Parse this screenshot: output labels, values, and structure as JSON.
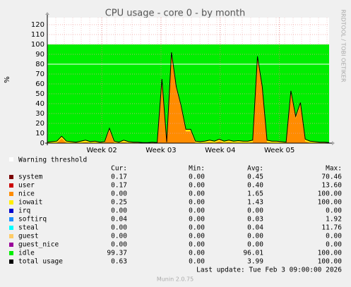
{
  "chart_data": {
    "type": "area",
    "title": "CPU usage - core 0 - by month",
    "y_label": "%",
    "side_note": "RRDTOOL / TOBI OETIKER",
    "xlim": [
      0,
      59
    ],
    "xticks": [
      {
        "value": 11.4,
        "label": "Week 02"
      },
      {
        "value": 23.8,
        "label": "Week 03"
      },
      {
        "value": 36.2,
        "label": "Week 04"
      },
      {
        "value": 48.6,
        "label": "Week 05"
      }
    ],
    "ylim": [
      0,
      120
    ],
    "yticks": [
      0,
      10,
      20,
      30,
      40,
      50,
      60,
      70,
      80,
      90,
      100,
      110,
      120
    ],
    "grid": true,
    "warning": {
      "name": "Warning threshold",
      "value": 80,
      "color": "#ffffff"
    },
    "stat_headers": [
      "Cur:",
      "Min:",
      "Avg:",
      "Max:"
    ],
    "series": [
      {
        "name": "system",
        "color": "#7a0000",
        "cur": "0.17",
        "min": "0.00",
        "avg": "0.45",
        "max": "70.46",
        "values": [
          0.2,
          0.2,
          0.2,
          0.2,
          0.2,
          0.2,
          0.2,
          0.2,
          0.2,
          0.2,
          0.2,
          0.2,
          0.2,
          0.2,
          0.2,
          0.2,
          0.2,
          0.2,
          0.2,
          0.2,
          0.2,
          0.2,
          0.2,
          0.2,
          0.2,
          0.2,
          0.2,
          0.2,
          0.2,
          0.2,
          0.2,
          0.2,
          0.2,
          0.2,
          0.2,
          0.2,
          0.2,
          0.2,
          0.2,
          0.2,
          0.2,
          0.2,
          0.2,
          0.2,
          0.2,
          0.2,
          0.2,
          0.2,
          0.2,
          0.2,
          0.2,
          0.2,
          0.2,
          0.2,
          0.2,
          0.2,
          0.2,
          0.2,
          0.2,
          0.2
        ]
      },
      {
        "name": "user",
        "color": "#cc0000",
        "cur": "0.17",
        "min": "0.00",
        "avg": "0.40",
        "max": "13.60",
        "values": [
          0.2,
          0.2,
          0.2,
          0.2,
          0.2,
          0.2,
          0.2,
          0.2,
          0.2,
          0.2,
          0.2,
          0.2,
          0.2,
          0.2,
          0.2,
          0.2,
          0.2,
          0.2,
          0.2,
          0.2,
          0.2,
          0.2,
          0.2,
          0.2,
          0.2,
          0.2,
          0.2,
          0.2,
          0.2,
          0.2,
          0.2,
          0.2,
          0.2,
          0.2,
          0.2,
          0.2,
          0.2,
          0.2,
          0.2,
          0.2,
          0.2,
          0.2,
          0.2,
          0.2,
          0.2,
          0.2,
          0.2,
          0.2,
          0.2,
          0.2,
          0.2,
          0.2,
          0.2,
          0.2,
          0.2,
          0.2,
          0.2,
          0.2,
          0.2,
          0.2
        ]
      },
      {
        "name": "nice",
        "color": "#ff8c00",
        "cur": "0.00",
        "min": "0.00",
        "avg": "1.65",
        "max": "100.00",
        "values": [
          0,
          0,
          0,
          4.6,
          0,
          0,
          0,
          0,
          0.6,
          0,
          0,
          0,
          0,
          12.6,
          0,
          0,
          0.6,
          0,
          0,
          0,
          0,
          0,
          0,
          0,
          62.6,
          0,
          89.6,
          54.6,
          35.6,
          11.6,
          11.6,
          0,
          0,
          0,
          0.6,
          0,
          1.6,
          0,
          0.6,
          0,
          0.1,
          0,
          0,
          0.6,
          85.6,
          54.6,
          0.6,
          0,
          0,
          0,
          0,
          50.6,
          24.6,
          38.6,
          1.6,
          0,
          0,
          0,
          0,
          0
        ]
      },
      {
        "name": "iowait",
        "color": "#ffee00",
        "cur": "0.25",
        "min": "0.00",
        "avg": "1.43",
        "max": "100.00",
        "values": [
          0.6,
          1.1,
          1.6,
          2,
          1.6,
          1.1,
          0.6,
          1.6,
          2,
          1.1,
          1.6,
          0.6,
          1.1,
          2,
          1.6,
          0.6,
          2,
          1.1,
          0.6,
          0.6,
          0.1,
          0.1,
          0.6,
          0.1,
          2,
          0.6,
          2,
          2,
          2,
          2,
          2,
          1.6,
          1.1,
          1.6,
          2,
          1.6,
          2,
          1.6,
          2,
          1.6,
          2,
          1.6,
          1.6,
          2,
          2,
          2,
          2,
          1.6,
          1.6,
          1.1,
          0.6,
          2,
          2,
          2,
          2,
          1.6,
          1.1,
          0.6,
          0.6,
          0.2
        ]
      },
      {
        "name": "irq",
        "color": "#0000cc",
        "cur": "0.00",
        "min": "0.00",
        "avg": "0.00",
        "max": "0.00"
      },
      {
        "name": "softirq",
        "color": "#1e90ff",
        "cur": "0.04",
        "min": "0.00",
        "avg": "0.03",
        "max": "1.92"
      },
      {
        "name": "steal",
        "color": "#00ffff",
        "cur": "0.00",
        "min": "0.00",
        "avg": "0.04",
        "max": "11.76"
      },
      {
        "name": "guest",
        "color": "#ffcc66",
        "cur": "0.00",
        "min": "0.00",
        "avg": "0.00",
        "max": "0.00"
      },
      {
        "name": "guest_nice",
        "color": "#990099",
        "cur": "0.00",
        "min": "0.00",
        "avg": "0.00",
        "max": "0.00"
      },
      {
        "name": "idle",
        "color": "#00ee00",
        "cur": "99.37",
        "min": "0.00",
        "avg": "96.01",
        "max": "100.00",
        "values": [
          99,
          98.5,
          98,
          93,
          98,
          98.5,
          99,
          98,
          97,
          98.5,
          98,
          99,
          98.5,
          85,
          98,
          99,
          97,
          98.5,
          99,
          99,
          99.5,
          99.5,
          99,
          99.5,
          35,
          99,
          8,
          43,
          62,
          86,
          86,
          98,
          98.5,
          98,
          97,
          98,
          96,
          98,
          97,
          98,
          97.5,
          98,
          98,
          97,
          12,
          43,
          97,
          98,
          98,
          98.5,
          99,
          47,
          73,
          59,
          96,
          98,
          98.5,
          99,
          99,
          99.4
        ]
      },
      {
        "name": "total usage",
        "color": "#000000",
        "line": true,
        "cur": "0.63",
        "min": "0.00",
        "avg": "3.99",
        "max": "100.00",
        "values": [
          1,
          1.5,
          2,
          7,
          2,
          1.5,
          1,
          2,
          3,
          1.5,
          2,
          1,
          1.5,
          15,
          2,
          1,
          3,
          1.5,
          1,
          1,
          0.5,
          0.5,
          1,
          0.5,
          65,
          1,
          92,
          57,
          38,
          14,
          14,
          2,
          1.5,
          2,
          3,
          2,
          4,
          2,
          3,
          2,
          2.5,
          2,
          2,
          3,
          88,
          57,
          3,
          2,
          2,
          1.5,
          1,
          53,
          27,
          41,
          4,
          2,
          1.5,
          1,
          1,
          0.6
        ]
      }
    ],
    "last_update": "Last update: Tue Feb  3 09:00:00 2026",
    "footer": "Munin 2.0.75"
  }
}
